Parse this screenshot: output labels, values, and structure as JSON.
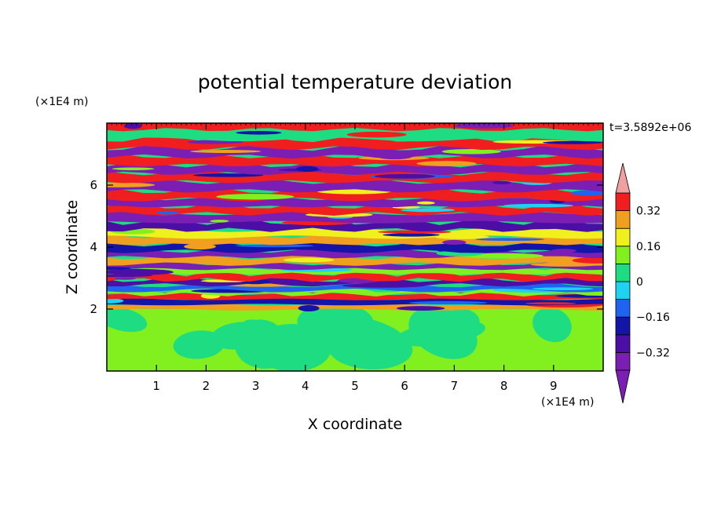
{
  "chart_data": {
    "type": "heatmap",
    "title": "potential temperature deviation",
    "xlabel": "X coordinate",
    "ylabel": "Z coordinate",
    "x_unit": "(×1E4 m)",
    "y_unit": "(×1E4 m)",
    "time_label": "t=3.5892e+06",
    "xlim": [
      0,
      10
    ],
    "ylim": [
      0,
      8
    ],
    "x_ticks": [
      {
        "value": 1,
        "label": "1"
      },
      {
        "value": 2,
        "label": "2"
      },
      {
        "value": 3,
        "label": "3"
      },
      {
        "value": 4,
        "label": "4"
      },
      {
        "value": 5,
        "label": "5"
      },
      {
        "value": 6,
        "label": "6"
      },
      {
        "value": 7,
        "label": "7"
      },
      {
        "value": 8,
        "label": "8"
      },
      {
        "value": 9,
        "label": "9"
      }
    ],
    "y_ticks": [
      {
        "value": 2,
        "label": "2"
      },
      {
        "value": 4,
        "label": "4"
      },
      {
        "value": 6,
        "label": "6"
      }
    ],
    "colorbar": {
      "levels": [
        -0.4,
        -0.32,
        -0.24,
        -0.16,
        -0.08,
        0,
        0.08,
        0.16,
        0.24,
        0.32,
        0.4
      ],
      "colors": [
        "#7b1fb4",
        "#4b0fa6",
        "#1414a8",
        "#1e64f0",
        "#1ed2f0",
        "#1edc82",
        "#82f01e",
        "#f0f01e",
        "#f0a01e",
        "#f01e1e",
        "#f0a0a0"
      ],
      "tick_labels": [
        {
          "value": -0.32,
          "label": "−0.32"
        },
        {
          "value": -0.16,
          "label": "−0.16"
        },
        {
          "value": 0,
          "label": "0"
        },
        {
          "value": 0.16,
          "label": "0.16"
        },
        {
          "value": 0.32,
          "label": "0.32"
        }
      ],
      "extend": "both"
    },
    "field_summary": {
      "lower_layer": {
        "z_range": [
          0,
          2
        ],
        "dominant_values": [
          0,
          0.08
        ]
      },
      "upper_layer": {
        "z_range": [
          2,
          8
        ],
        "dominant_values": [
          -0.4,
          0.4
        ]
      }
    }
  }
}
